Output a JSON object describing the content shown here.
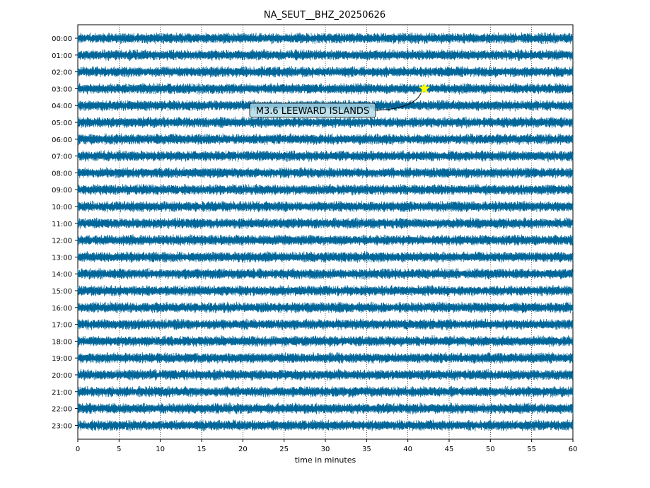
{
  "chart_data": {
    "type": "line",
    "title": "NA_SEUT__BHZ_20250626",
    "xlabel": "time in minutes",
    "ylabel": "",
    "xlim": [
      0,
      60
    ],
    "x_ticks": [
      0,
      5,
      10,
      15,
      20,
      25,
      30,
      35,
      40,
      45,
      50,
      55,
      60
    ],
    "x_tick_labels": [
      "0",
      "5",
      "10",
      "15",
      "20",
      "25",
      "30",
      "35",
      "40",
      "45",
      "50",
      "55",
      "60"
    ],
    "y_tick_labels": [
      "00:00",
      "01:00",
      "02:00",
      "03:00",
      "04:00",
      "05:00",
      "06:00",
      "07:00",
      "08:00",
      "09:00",
      "10:00",
      "11:00",
      "12:00",
      "13:00",
      "14:00",
      "15:00",
      "16:00",
      "17:00",
      "18:00",
      "19:00",
      "20:00",
      "21:00",
      "22:00",
      "23:00"
    ],
    "grid": "vertical dotted",
    "trace_color": "#006699",
    "events": [
      {
        "label": "M3.6 LEEWARD ISLANDS",
        "hour_row": 3,
        "minute": 42,
        "marker": "star",
        "marker_color": "#ffff00"
      }
    ]
  }
}
